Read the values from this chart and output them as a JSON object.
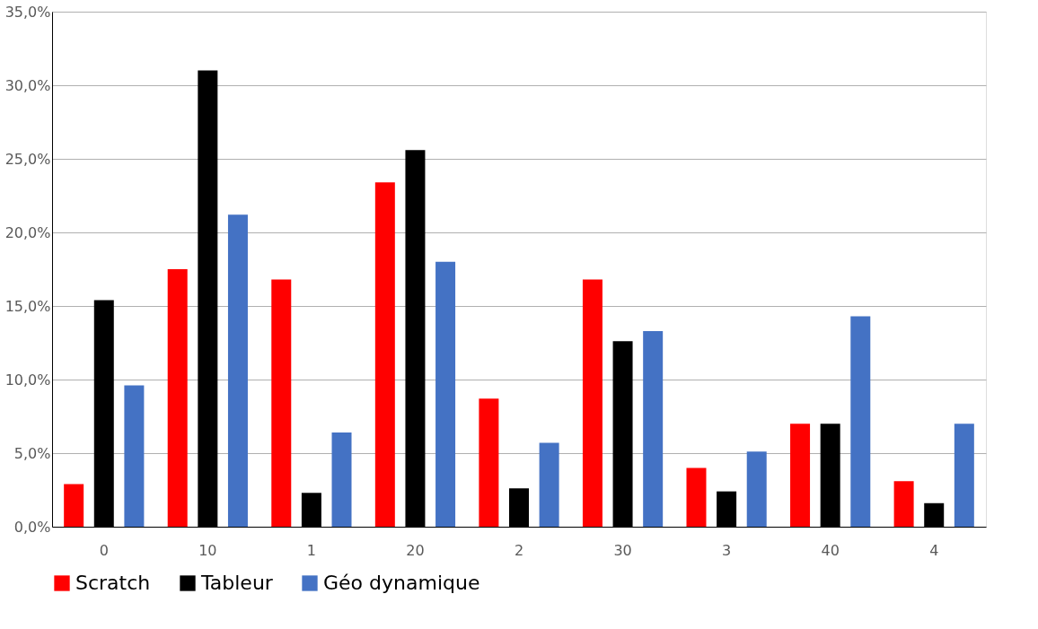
{
  "chart_data": {
    "type": "bar",
    "categories": [
      "0",
      "10",
      "1",
      "20",
      "2",
      "30",
      "3",
      "40",
      "4"
    ],
    "series": [
      {
        "name": "Scratch",
        "color": "#ff0000",
        "values": [
          2.9,
          17.5,
          16.8,
          23.4,
          8.7,
          16.8,
          4.0,
          7.0,
          3.1
        ]
      },
      {
        "name": "Tableur",
        "color": "#000000",
        "values": [
          15.4,
          31.0,
          2.3,
          25.6,
          2.6,
          12.6,
          2.4,
          7.0,
          1.6
        ]
      },
      {
        "name": "Géo dynamique",
        "color": "#4472c4",
        "values": [
          9.6,
          21.2,
          6.4,
          18.0,
          5.7,
          13.3,
          5.1,
          14.3,
          7.0
        ]
      }
    ],
    "ylim": [
      0,
      35
    ],
    "yticks": [
      {
        "value": 0,
        "label": "0,0%"
      },
      {
        "value": 5,
        "label": "5,0%"
      },
      {
        "value": 10,
        "label": "10,0%"
      },
      {
        "value": 15,
        "label": "15,0%"
      },
      {
        "value": 20,
        "label": "20,0%"
      },
      {
        "value": 25,
        "label": "25,0%"
      },
      {
        "value": 30,
        "label": "30,0%"
      },
      {
        "value": 35,
        "label": "35,0%"
      }
    ],
    "grid": "y",
    "legend": "bottom"
  }
}
